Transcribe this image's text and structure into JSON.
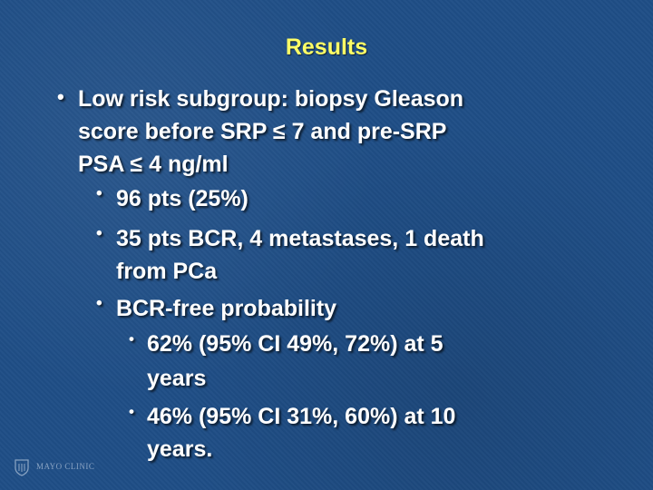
{
  "slide": {
    "title": "Results",
    "bullets": [
      {
        "level": 1,
        "lines": [
          "Low risk subgroup: biopsy Gleason",
          "score before SRP ≤ 7 and pre-SRP",
          "PSA ≤ 4 ng/ml"
        ]
      },
      {
        "level": 2,
        "lines": [
          "96 pts (25%)"
        ]
      },
      {
        "level": 2,
        "lines": [
          "35 pts BCR, 4 metastases, 1 death",
          "from PCa"
        ]
      },
      {
        "level": 2,
        "lines": [
          "BCR-free probability"
        ]
      },
      {
        "level": 3,
        "lines": [
          "62% (95% CI 49%, 72%) at 5",
          "years"
        ]
      },
      {
        "level": 3,
        "lines": [
          "46% (95% CI 31%, 60%) at 10",
          "years."
        ]
      }
    ]
  },
  "footer": {
    "logo_text": "MAYO CLINIC",
    "logo_icon": "mayo-shield-icon"
  }
}
